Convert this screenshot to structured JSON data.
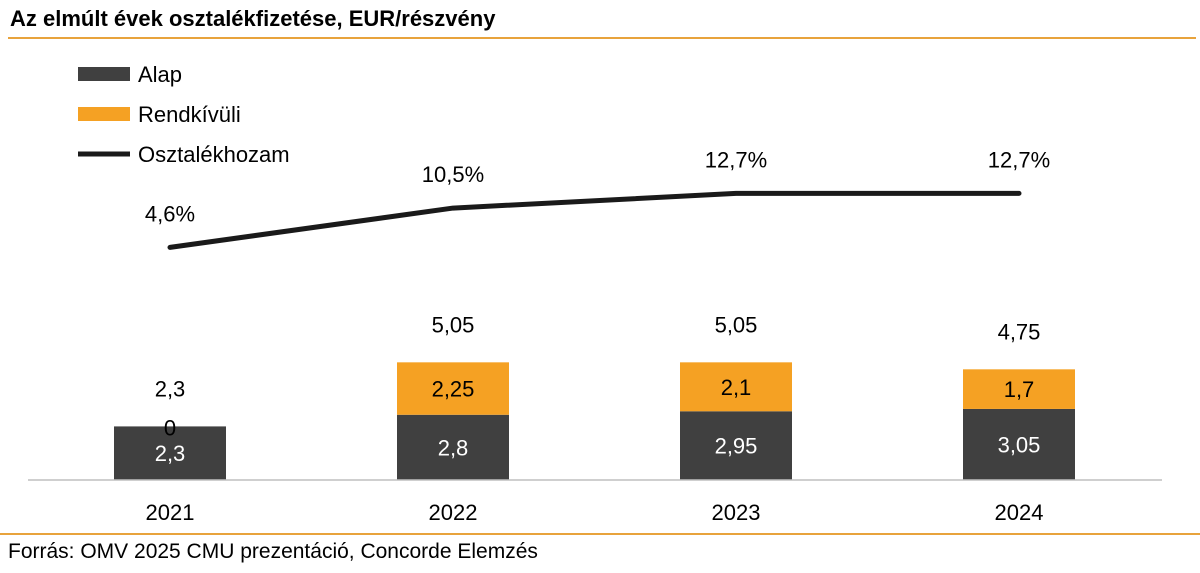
{
  "title": "Az elmúlt évek osztalékfizetése, EUR/részvény",
  "source": "Forrás: OMV 2025 CMU prezentáció, Concorde Elemzés",
  "colors": {
    "alap": "#404040",
    "rendkivuli": "#F5A123",
    "line": "#1a1a1a",
    "rule": "#E8A33C"
  },
  "chart_data": {
    "type": "bar",
    "stacked": true,
    "categories": [
      "2021",
      "2022",
      "2023",
      "2024"
    ],
    "series": [
      {
        "name": "Alap",
        "values": [
          2.3,
          2.8,
          2.95,
          3.05
        ],
        "labels": [
          "2,3",
          "2,8",
          "2,95",
          "3,05"
        ]
      },
      {
        "name": "Rendkívüli",
        "values": [
          0,
          2.25,
          2.1,
          1.7
        ],
        "labels": [
          "0",
          "2,25",
          "2,1",
          "1,7"
        ]
      }
    ],
    "totals": {
      "values": [
        2.3,
        5.05,
        5.05,
        4.75
      ],
      "labels": [
        "2,3",
        "5,05",
        "5,05",
        "4,75"
      ]
    },
    "line_series": {
      "name": "Osztalékhozam",
      "values": [
        4.6,
        10.5,
        12.7,
        12.7
      ],
      "labels": [
        "4,6%",
        "10,5%",
        "12,7%",
        "12,7%"
      ],
      "unit": "%"
    },
    "legend": [
      "Alap",
      "Rendkívüli",
      "Osztalékhozam"
    ],
    "legend_position": "top-left",
    "grid": false
  }
}
